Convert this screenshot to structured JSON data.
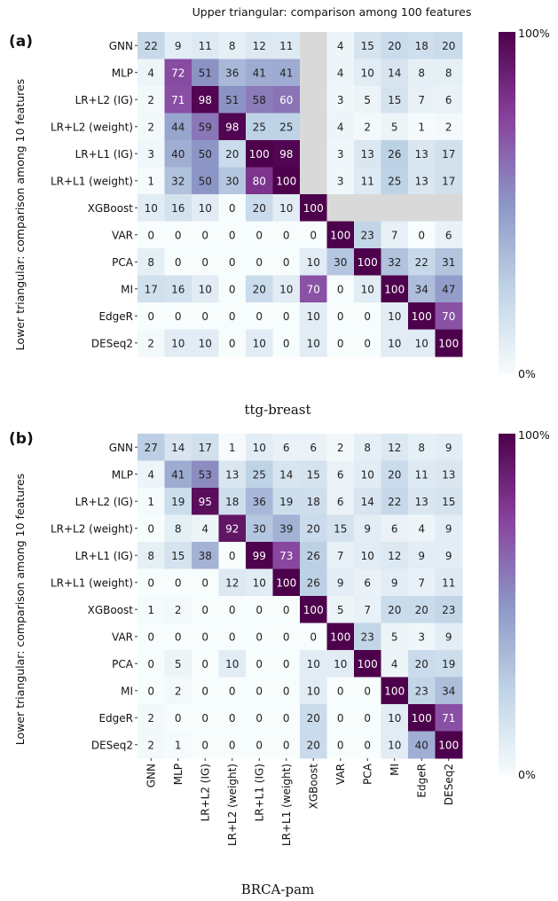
{
  "header_title": "Upper triangular: comparison among 100 features",
  "side_label": "Lower triangular: comparison among 10 features",
  "labels": [
    "GNN",
    "MLP",
    "LR+L2 (IG)",
    "LR+L2 (weight)",
    "LR+L1 (IG)",
    "LR+L1 (weight)",
    "XGBoost",
    "VAR",
    "PCA",
    "MI",
    "EdgeR",
    "DESeq2"
  ],
  "colors": {
    "low": "#f7fcfd",
    "mid": "#8c96c6",
    "high": "#4d004b",
    "missing": "#d9d9d9"
  },
  "chart_data": [
    {
      "type": "heatmap",
      "panel_label": "(a)",
      "caption": "ttg-breast",
      "colorbar_max": "100%",
      "colorbar_min": "0%",
      "values": [
        [
          22,
          9,
          11,
          8,
          12,
          11,
          null,
          4,
          15,
          20,
          18,
          20
        ],
        [
          4,
          72,
          51,
          36,
          41,
          41,
          null,
          4,
          10,
          14,
          8,
          8
        ],
        [
          2,
          71,
          98,
          51,
          58,
          60,
          null,
          3,
          5,
          15,
          7,
          6
        ],
        [
          2,
          44,
          59,
          98,
          25,
          25,
          null,
          4,
          2,
          5,
          1,
          2
        ],
        [
          3,
          40,
          50,
          20,
          100,
          98,
          null,
          3,
          13,
          26,
          13,
          17
        ],
        [
          1,
          32,
          50,
          30,
          80,
          100,
          null,
          3,
          11,
          25,
          13,
          17
        ],
        [
          10,
          16,
          10,
          0,
          20,
          10,
          100,
          null,
          null,
          null,
          null,
          null
        ],
        [
          0,
          0,
          0,
          0,
          0,
          0,
          0,
          100,
          23,
          7,
          0,
          6
        ],
        [
          8,
          0,
          0,
          0,
          0,
          0,
          10,
          30,
          100,
          32,
          22,
          31
        ],
        [
          17,
          16,
          10,
          0,
          20,
          10,
          70,
          0,
          10,
          100,
          34,
          47
        ],
        [
          0,
          0,
          0,
          0,
          0,
          0,
          10,
          0,
          0,
          10,
          100,
          70
        ],
        [
          2,
          10,
          10,
          0,
          10,
          0,
          10,
          0,
          0,
          10,
          10,
          100
        ]
      ]
    },
    {
      "type": "heatmap",
      "panel_label": "(b)",
      "caption": "BRCA-pam",
      "colorbar_max": "100%",
      "colorbar_min": "0%",
      "values": [
        [
          27,
          14,
          17,
          1,
          10,
          6,
          6,
          2,
          8,
          12,
          8,
          9
        ],
        [
          4,
          41,
          53,
          13,
          25,
          14,
          15,
          6,
          10,
          20,
          11,
          13
        ],
        [
          1,
          19,
          95,
          18,
          36,
          19,
          18,
          6,
          14,
          22,
          13,
          15
        ],
        [
          0,
          8,
          4,
          92,
          30,
          39,
          20,
          15,
          9,
          6,
          4,
          9
        ],
        [
          8,
          15,
          38,
          0,
          99,
          73,
          26,
          7,
          10,
          12,
          9,
          9
        ],
        [
          0,
          0,
          0,
          12,
          10,
          100,
          26,
          9,
          6,
          9,
          7,
          11
        ],
        [
          1,
          2,
          0,
          0,
          0,
          0,
          100,
          5,
          7,
          20,
          20,
          23
        ],
        [
          0,
          0,
          0,
          0,
          0,
          0,
          0,
          100,
          23,
          5,
          3,
          9
        ],
        [
          0,
          5,
          0,
          10,
          0,
          0,
          10,
          10,
          100,
          4,
          20,
          19
        ],
        [
          0,
          2,
          0,
          0,
          0,
          0,
          10,
          0,
          0,
          100,
          23,
          34
        ],
        [
          2,
          0,
          0,
          0,
          0,
          0,
          20,
          0,
          0,
          10,
          100,
          71
        ],
        [
          2,
          1,
          0,
          0,
          0,
          0,
          20,
          0,
          0,
          10,
          40,
          100
        ]
      ]
    }
  ]
}
